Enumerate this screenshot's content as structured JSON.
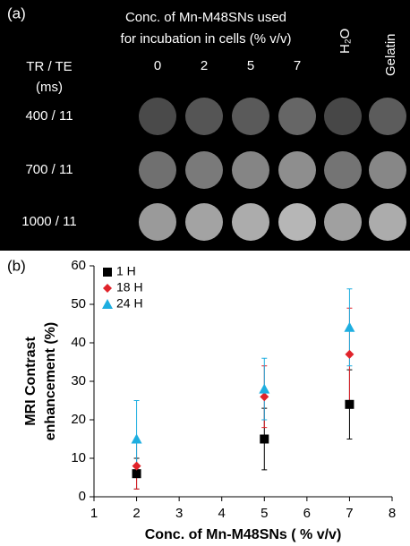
{
  "panel_a": {
    "label": "(a)",
    "title_lines": [
      "Conc. of Mn-M48SNs used",
      "for incubation in cells (% v/v)"
    ],
    "row_header": [
      "TR / TE",
      "(ms)"
    ],
    "columns": [
      "0",
      "2",
      "5",
      "7"
    ],
    "controls": [
      "H₂O",
      "Gelatin"
    ],
    "rows": [
      "400 / 11",
      "700 / 11",
      "1000 / 11"
    ]
  },
  "chart_data": {
    "type": "scatter",
    "panel_label": "(b)",
    "x_label": "Conc. of Mn-M48SNs ( % v/v)",
    "y_label": [
      "MRI Contrast",
      "enhancement (%)"
    ],
    "xlim": [
      1,
      8
    ],
    "xticks": [
      1,
      2,
      3,
      4,
      5,
      6,
      7,
      8
    ],
    "ylim": [
      0,
      60
    ],
    "yticks": [
      0,
      10,
      20,
      30,
      40,
      50,
      60
    ],
    "legend": "upper left",
    "series": [
      {
        "name": "1 H",
        "color": "#000000",
        "marker": "square",
        "x": [
          2,
          5,
          7
        ],
        "values": [
          6,
          15,
          24
        ],
        "errors": [
          4,
          8,
          9
        ]
      },
      {
        "name": "18 H",
        "color": "#e0232a",
        "marker": "diamond",
        "x": [
          2,
          5,
          7
        ],
        "values": [
          8,
          26,
          37
        ],
        "errors": [
          6,
          8,
          12
        ]
      },
      {
        "name": "24 H",
        "color": "#1eaee0",
        "marker": "triangle",
        "x": [
          2,
          5,
          7
        ],
        "values": [
          15,
          28,
          44
        ],
        "errors": [
          10,
          8,
          10
        ]
      }
    ]
  }
}
